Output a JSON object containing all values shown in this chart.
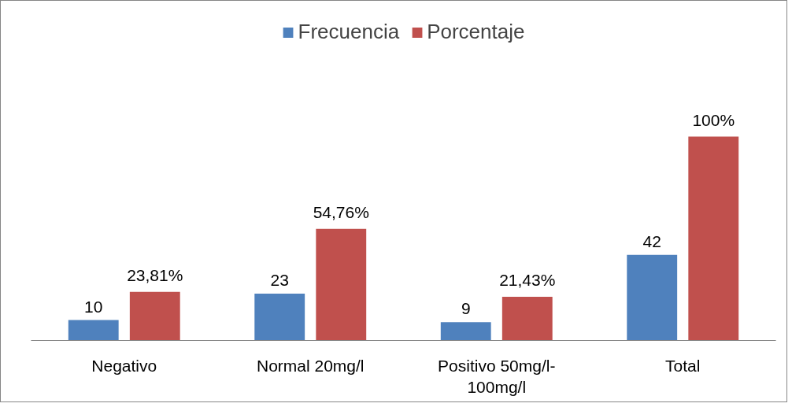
{
  "chart_data": {
    "type": "bar",
    "categories": [
      "Negativo",
      "Normal 20mg/l",
      "Positivo 50mg/l-100mg/l",
      "Total"
    ],
    "series": [
      {
        "name": "Frecuencia",
        "color": "#4f81bd",
        "values": [
          10,
          23,
          9,
          42
        ],
        "value_labels": [
          "10",
          "23",
          "9",
          "42"
        ]
      },
      {
        "name": "Porcentaje",
        "color": "#c0504d",
        "values": [
          23.81,
          54.76,
          21.43,
          100
        ],
        "value_labels": [
          "23,81%",
          "54,76%",
          "21,43%",
          "100%"
        ]
      }
    ],
    "legend": "top"
  }
}
